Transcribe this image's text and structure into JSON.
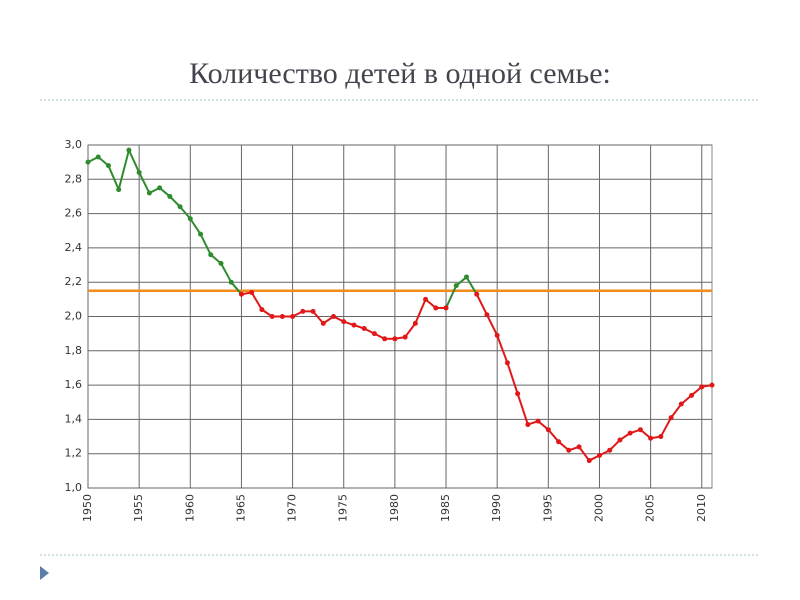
{
  "chart_data": {
    "type": "line",
    "title": "Количество детей в одной семье:",
    "x": [
      1950,
      1951,
      1952,
      1953,
      1954,
      1955,
      1956,
      1957,
      1958,
      1959,
      1960,
      1961,
      1962,
      1963,
      1964,
      1965,
      1966,
      1967,
      1968,
      1969,
      1970,
      1971,
      1972,
      1973,
      1974,
      1975,
      1976,
      1977,
      1978,
      1979,
      1980,
      1981,
      1982,
      1983,
      1984,
      1985,
      1986,
      1987,
      1988,
      1989,
      1990,
      1991,
      1992,
      1993,
      1994,
      1995,
      1996,
      1997,
      1998,
      1999,
      2000,
      2001,
      2002,
      2003,
      2004,
      2005,
      2006,
      2007,
      2008,
      2009,
      2010,
      2011
    ],
    "values": [
      2.9,
      2.93,
      2.88,
      2.74,
      2.97,
      2.84,
      2.72,
      2.75,
      2.7,
      2.64,
      2.57,
      2.48,
      2.36,
      2.31,
      2.2,
      2.13,
      2.14,
      2.04,
      2.0,
      2.0,
      2.0,
      2.03,
      2.03,
      1.96,
      2.0,
      1.97,
      1.95,
      1.93,
      1.9,
      1.87,
      1.87,
      1.88,
      1.96,
      2.1,
      2.05,
      2.05,
      2.18,
      2.23,
      2.13,
      2.01,
      1.89,
      1.73,
      1.55,
      1.37,
      1.39,
      1.34,
      1.27,
      1.22,
      1.24,
      1.16,
      1.19,
      1.22,
      1.28,
      1.32,
      1.34,
      1.29,
      1.3,
      1.41,
      1.49,
      1.54,
      1.59,
      1.6
    ],
    "xlim": [
      1950,
      2011
    ],
    "ylim": [
      1,
      3
    ],
    "xticks": [
      1950,
      1955,
      1960,
      1965,
      1970,
      1975,
      1980,
      1985,
      1990,
      1995,
      2000,
      2005,
      2010
    ],
    "yticks": [
      {
        "value": 1,
        "label": "1,0"
      },
      {
        "value": 1.2,
        "label": "1,2"
      },
      {
        "value": 1.4,
        "label": "1,4"
      },
      {
        "value": 1.6,
        "label": "1,6"
      },
      {
        "value": 1.8,
        "label": "1,8"
      },
      {
        "value": 2,
        "label": "2,0"
      },
      {
        "value": 2.2,
        "label": "2,2"
      },
      {
        "value": 2.4,
        "label": "2,4"
      },
      {
        "value": 2.6,
        "label": "2,6"
      },
      {
        "value": 2.8,
        "label": "2,8"
      },
      {
        "value": 3,
        "label": "3,0"
      }
    ],
    "grid": true,
    "color_above": "#2e8b2e",
    "color_below": "#e01818",
    "reference_line": {
      "value": 2.15,
      "color": "#f28a1c"
    }
  }
}
